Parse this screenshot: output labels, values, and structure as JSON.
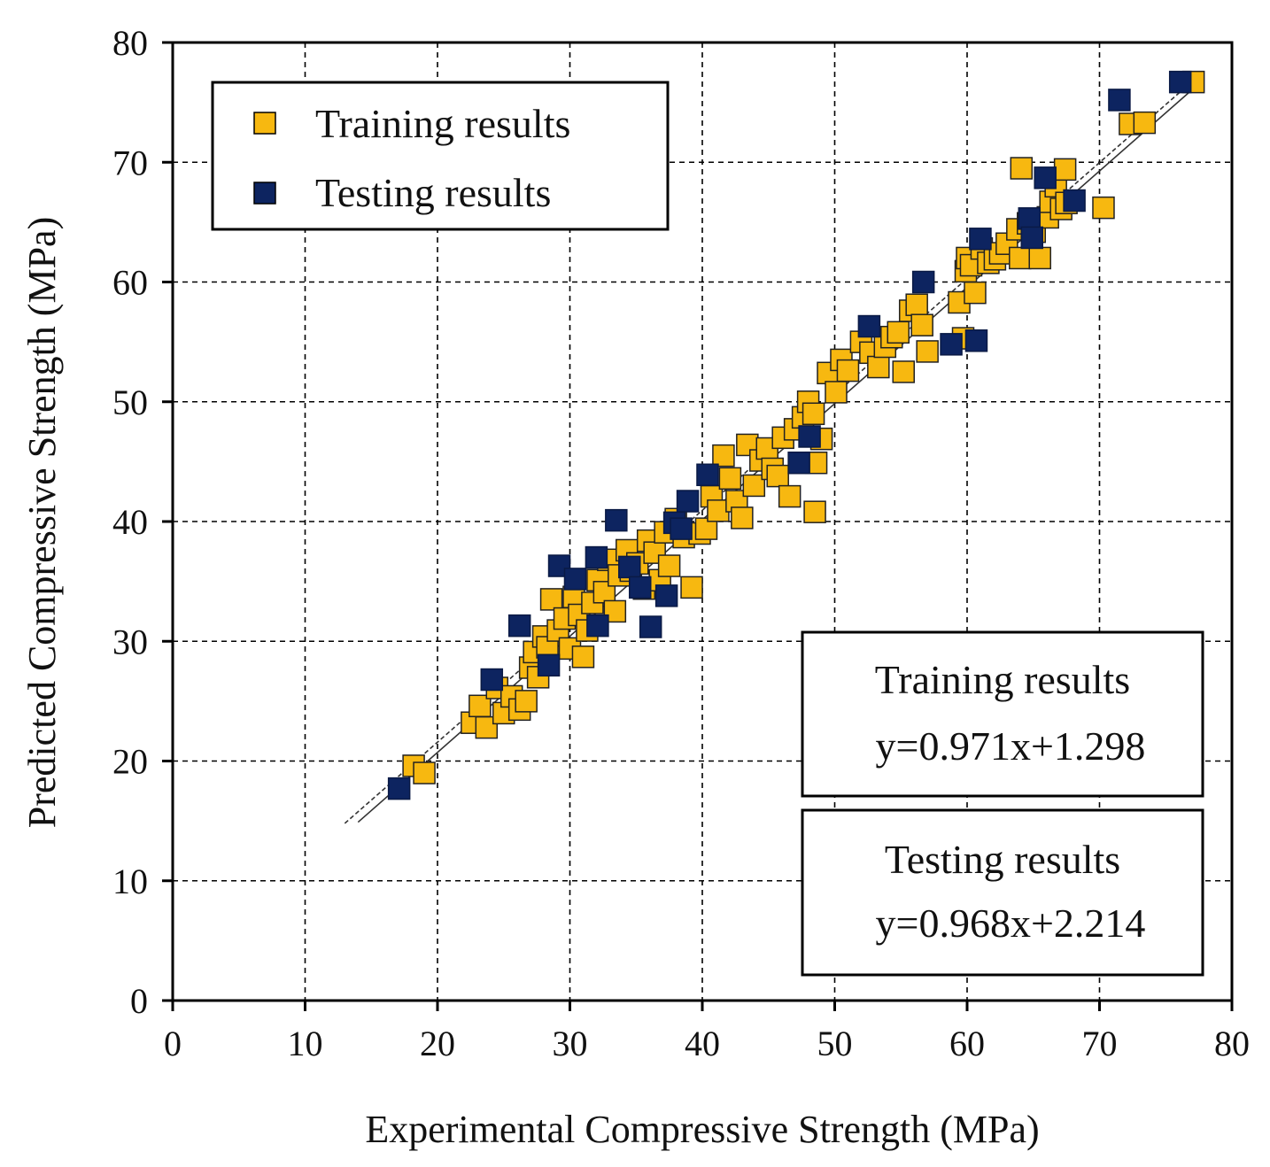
{
  "chart_data": {
    "type": "scatter",
    "xlabel": "Experimental Compressive Strength (MPa)",
    "ylabel": "Predicted Compressive Strength (MPa)",
    "xlim": [
      0,
      80
    ],
    "ylim": [
      0,
      80
    ],
    "xticks": [
      "0",
      "10",
      "20",
      "30",
      "40",
      "50",
      "60",
      "70",
      "80"
    ],
    "yticks": [
      "0",
      "10",
      "20",
      "30",
      "40",
      "50",
      "60",
      "70",
      "80"
    ],
    "grid": true,
    "legend_position": "top-left",
    "legend": [
      "Training results",
      "Testing results"
    ],
    "series": [
      {
        "name": "Training results",
        "color": "#F7B810",
        "points": [
          [
            18.2,
            19.6
          ],
          [
            19.0,
            19.0
          ],
          [
            22.6,
            23.2
          ],
          [
            23.2,
            24.6
          ],
          [
            23.7,
            22.8
          ],
          [
            24.5,
            26.1
          ],
          [
            25.0,
            24.0
          ],
          [
            25.6,
            25.4
          ],
          [
            26.2,
            24.3
          ],
          [
            26.7,
            25.0
          ],
          [
            27.0,
            27.8
          ],
          [
            27.3,
            29.1
          ],
          [
            27.6,
            27.0
          ],
          [
            28.0,
            30.4
          ],
          [
            28.3,
            29.5
          ],
          [
            28.6,
            33.5
          ],
          [
            29.1,
            30.9
          ],
          [
            29.6,
            31.9
          ],
          [
            30.0,
            29.4
          ],
          [
            30.3,
            33.7
          ],
          [
            30.7,
            32.2
          ],
          [
            31.0,
            28.7
          ],
          [
            31.3,
            30.9
          ],
          [
            31.7,
            33.2
          ],
          [
            32.1,
            35.1
          ],
          [
            32.6,
            34.1
          ],
          [
            32.9,
            36.8
          ],
          [
            33.4,
            32.5
          ],
          [
            33.7,
            35.5
          ],
          [
            34.3,
            37.6
          ],
          [
            34.6,
            35.9
          ],
          [
            35.1,
            36.5
          ],
          [
            35.6,
            34.4
          ],
          [
            35.9,
            38.4
          ],
          [
            36.4,
            37.4
          ],
          [
            36.8,
            35.1
          ],
          [
            37.2,
            39.1
          ],
          [
            37.5,
            36.3
          ],
          [
            38.0,
            40.2
          ],
          [
            38.6,
            38.7
          ],
          [
            39.2,
            34.5
          ],
          [
            39.8,
            39.0
          ],
          [
            40.3,
            39.4
          ],
          [
            40.7,
            42.1
          ],
          [
            41.2,
            40.9
          ],
          [
            41.6,
            45.5
          ],
          [
            42.1,
            43.6
          ],
          [
            42.6,
            41.7
          ],
          [
            43.0,
            40.3
          ],
          [
            43.4,
            46.4
          ],
          [
            43.9,
            43.0
          ],
          [
            44.4,
            45.1
          ],
          [
            44.9,
            46.1
          ],
          [
            45.3,
            44.4
          ],
          [
            45.7,
            43.8
          ],
          [
            46.1,
            47.0
          ],
          [
            46.6,
            42.1
          ],
          [
            47.0,
            47.7
          ],
          [
            47.6,
            48.7
          ],
          [
            48.0,
            50.0
          ],
          [
            48.4,
            49.0
          ],
          [
            48.6,
            44.9
          ],
          [
            48.5,
            40.8
          ],
          [
            49.0,
            46.9
          ],
          [
            49.5,
            52.4
          ],
          [
            50.1,
            50.8
          ],
          [
            50.5,
            53.5
          ],
          [
            51.0,
            52.6
          ],
          [
            52.0,
            55.0
          ],
          [
            52.7,
            54.1
          ],
          [
            53.3,
            52.9
          ],
          [
            53.8,
            54.6
          ],
          [
            54.3,
            55.4
          ],
          [
            54.8,
            55.8
          ],
          [
            55.2,
            52.5
          ],
          [
            55.7,
            57.6
          ],
          [
            56.2,
            58.1
          ],
          [
            56.6,
            56.4
          ],
          [
            57.0,
            54.2
          ],
          [
            59.4,
            58.3
          ],
          [
            59.7,
            55.3
          ],
          [
            59.9,
            60.9
          ],
          [
            60.0,
            62.0
          ],
          [
            60.3,
            61.4
          ],
          [
            60.6,
            59.1
          ],
          [
            61.1,
            62.8
          ],
          [
            61.6,
            61.6
          ],
          [
            62.1,
            61.9
          ],
          [
            62.5,
            62.4
          ],
          [
            63.0,
            63.2
          ],
          [
            63.8,
            64.4
          ],
          [
            64.0,
            62.0
          ],
          [
            64.1,
            69.5
          ],
          [
            64.6,
            64.9
          ],
          [
            65.1,
            64.2
          ],
          [
            65.5,
            62.0
          ],
          [
            66.1,
            65.4
          ],
          [
            66.3,
            66.7
          ],
          [
            66.7,
            68.0
          ],
          [
            67.1,
            66.1
          ],
          [
            67.4,
            69.4
          ],
          [
            67.5,
            66.6
          ],
          [
            70.3,
            66.2
          ],
          [
            72.3,
            73.2
          ],
          [
            73.4,
            73.3
          ],
          [
            77.1,
            76.7
          ]
        ]
      },
      {
        "name": "Testing results",
        "color": "#0D2460",
        "points": [
          [
            17.1,
            17.7
          ],
          [
            24.1,
            26.8
          ],
          [
            26.2,
            31.3
          ],
          [
            28.4,
            28.0
          ],
          [
            29.2,
            36.3
          ],
          [
            30.4,
            35.2
          ],
          [
            32.0,
            37.0
          ],
          [
            32.1,
            31.3
          ],
          [
            33.5,
            40.1
          ],
          [
            34.5,
            36.2
          ],
          [
            35.3,
            34.5
          ],
          [
            36.1,
            31.2
          ],
          [
            37.3,
            33.8
          ],
          [
            37.9,
            39.9
          ],
          [
            38.4,
            39.4
          ],
          [
            38.9,
            41.7
          ],
          [
            40.4,
            43.9
          ],
          [
            47.3,
            44.9
          ],
          [
            48.1,
            47.1
          ],
          [
            52.6,
            56.3
          ],
          [
            56.7,
            60.0
          ],
          [
            58.8,
            54.8
          ],
          [
            60.7,
            55.1
          ],
          [
            61.0,
            63.6
          ],
          [
            64.7,
            65.3
          ],
          [
            64.9,
            63.7
          ],
          [
            65.9,
            68.7
          ],
          [
            68.1,
            66.8
          ],
          [
            71.5,
            75.2
          ],
          [
            76.1,
            76.7
          ]
        ]
      }
    ],
    "fit_lines": [
      {
        "name": "Training results",
        "equation": "y=0.971x+1.298",
        "slope": 0.971,
        "intercept": 1.298,
        "x_range": [
          14,
          77
        ]
      },
      {
        "name": "Testing results",
        "equation": "y=0.968x+2.214",
        "slope": 0.968,
        "intercept": 2.214,
        "x_range": [
          13,
          77
        ]
      }
    ],
    "annotations": [
      {
        "title": "Training results",
        "equation": "y=0.971x+1.298"
      },
      {
        "title": "Testing results",
        "equation": "y=0.968x+2.214"
      }
    ]
  }
}
